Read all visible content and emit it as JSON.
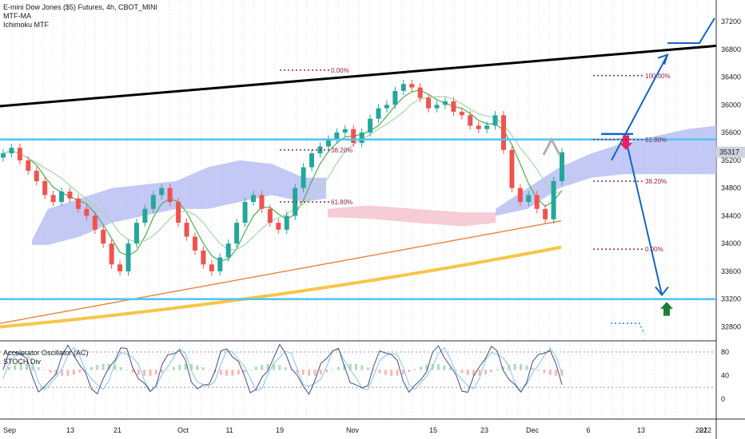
{
  "legend": {
    "symbol": "E-mini Dow Jones ($5) Futures, 4h, CBOT_MINI",
    "indicator_1": "MTF-MA",
    "indicator_2": "Ichimoku MTF",
    "osc_1": "Accelerator Oscillator (AC)",
    "osc_2": "STOCH Div"
  },
  "colors": {
    "up": "#26a69a",
    "down": "#ef5350",
    "cloud": "#b8bff2",
    "cloud_pink": "#f5c6d2",
    "ma_fast": "#4caf50",
    "ma_slow": "#a5d6a7",
    "ma_orange": "#e6863a",
    "ma_yellow": "#f7c548",
    "resistance": "#000000",
    "hline": "#4fc3f7",
    "fib": "#8e244d",
    "projection": "#1565c0",
    "stoch_k": "#4a4a7a",
    "stoch_d": "#7ec8e3"
  },
  "chart_data": {
    "type": "candlestick",
    "title": "E-mini Dow Jones ($5) Futures, 4h, CBOT_MINI",
    "price_axis": {
      "ticks": [
        37200,
        36800,
        36400,
        36000,
        35600,
        35200,
        34800,
        34400,
        34000,
        33600,
        33200,
        32800
      ],
      "last_price": 35317,
      "range": [
        32600,
        37500
      ]
    },
    "time_axis": {
      "ticks": [
        "Sep",
        "13",
        "21",
        "Oct",
        "11",
        "19",
        "Nov",
        "15",
        "23",
        "Dec",
        "6",
        "13",
        "21",
        "2022"
      ]
    },
    "close_series": [
      35300,
      35380,
      35200,
      35050,
      34900,
      34700,
      34600,
      34750,
      34650,
      34500,
      34400,
      34200,
      34000,
      33700,
      33600,
      34000,
      34300,
      34500,
      34700,
      34800,
      34600,
      34300,
      34100,
      33900,
      33700,
      33600,
      33800,
      34000,
      34300,
      34600,
      34700,
      34500,
      34300,
      34200,
      34400,
      34800,
      35100,
      35300,
      35400,
      35500,
      35600,
      35650,
      35450,
      35600,
      35800,
      35950,
      36000,
      36200,
      36300,
      36250,
      36100,
      35950,
      36000,
      36050,
      35900,
      35850,
      35700,
      35650,
      35700,
      35850,
      35350,
      34800,
      34600,
      34700,
      34500,
      34350,
      34900,
      35317
    ],
    "horizontal_lines": [
      35500,
      33200
    ],
    "fib_levels": [
      {
        "label": "0.00%",
        "price": 36500
      },
      {
        "label": "38.20%",
        "price": 35350
      },
      {
        "label": "61.80%",
        "price": 34600
      },
      {
        "label": "100.00%",
        "price": 36420
      },
      {
        "label": "61.80%",
        "price": 35500
      },
      {
        "label": "38.20%",
        "price": 34900
      },
      {
        "label": "0.00%",
        "price": 33920
      }
    ],
    "oscillator": {
      "ticks": [
        80,
        40,
        0
      ],
      "range": [
        -10,
        100
      ]
    },
    "lines": [
      {
        "name": "resistance",
        "points": [
          [
            0,
            35980
          ],
          [
            896,
            36850
          ]
        ]
      },
      {
        "name": "projection-up",
        "points": [
          [
            765,
            35200
          ],
          [
            835,
            36720
          ]
        ]
      },
      {
        "name": "projection-down",
        "points": [
          [
            782,
            35550
          ],
          [
            828,
            33260
          ]
        ]
      },
      {
        "name": "target-upper",
        "points": [
          [
            835,
            36890
          ],
          [
            875,
            36890
          ],
          [
            894,
            37250
          ]
        ]
      }
    ]
  }
}
